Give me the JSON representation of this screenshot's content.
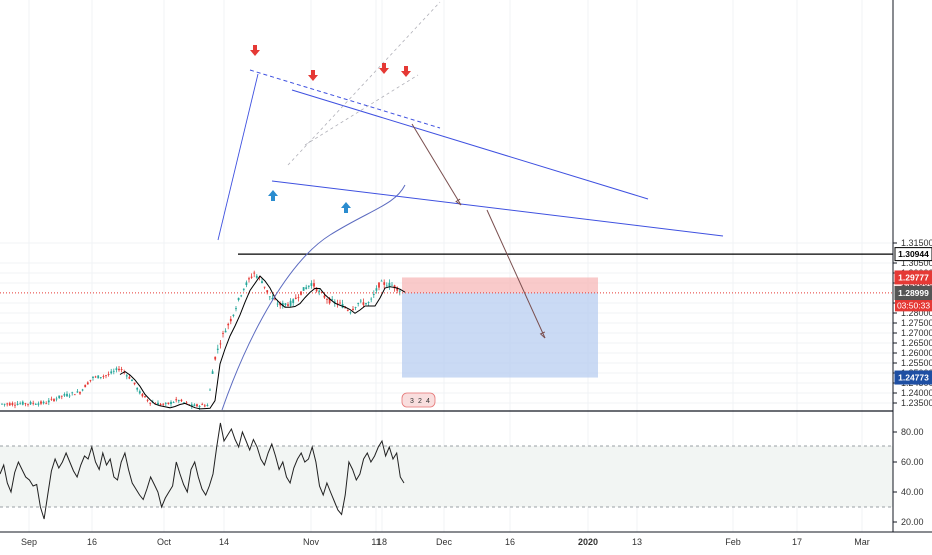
{
  "chart_data": [
    {
      "type": "candlestick",
      "title": "",
      "x_tick_labels": [
        "Sep",
        "16",
        "Oct",
        "14",
        "Nov",
        "11",
        "18",
        "Dec",
        "16",
        "2020",
        "13",
        "Feb",
        "17",
        "Mar"
      ],
      "y_tick_labels": [
        "1.31500",
        "1.30500",
        "1.30000",
        "1.29500",
        "1.28500",
        "1.28000",
        "1.27500",
        "1.27000",
        "1.26500",
        "1.26000",
        "1.25500",
        "1.25000",
        "1.24500",
        "1.24000",
        "1.23500"
      ],
      "ylim": [
        1.2325,
        1.3175
      ],
      "grid": true,
      "price_labels": [
        {
          "value": 1.30944,
          "text": "1.30944",
          "kind": "resistance",
          "color": "#000000"
        },
        {
          "value": 1.29777,
          "text": "1.29777",
          "kind": "take-profit-top",
          "color": "#e53935"
        },
        {
          "value": 1.29007,
          "text": "1.29007",
          "kind": "last-price",
          "color": "#e53935"
        },
        {
          "value": 1.28999,
          "text": "1.28999",
          "kind": "bid",
          "color": "#555555"
        },
        {
          "value": 1.24773,
          "text": "1.24773",
          "kind": "target",
          "color": "#1e4fa3"
        }
      ],
      "countdown": "03:50:33",
      "markers": {
        "down_arrows": 4,
        "up_arrows": 2,
        "down_arrow_color": "#e53935",
        "up_arrow_color": "#2a8ccf"
      },
      "event_badge": [
        "3",
        "2",
        "4"
      ],
      "colors": {
        "up": "#26a69a",
        "down": "#e53935",
        "ma_short": "#000000",
        "ma_long": "#5c6bc0",
        "trendline": "#3f51e0",
        "stop_zone": "#f7b3b3",
        "target_zone": "#b8cdf0"
      }
    },
    {
      "type": "line",
      "title": "",
      "y_tick_labels": [
        "80.00",
        "60.00",
        "40.00",
        "20.00"
      ],
      "ylim": [
        15,
        90
      ],
      "series": [
        {
          "values": [
            52,
            58,
            46,
            40,
            53,
            60,
            55,
            50,
            48,
            44,
            45,
            30,
            22,
            38,
            54,
            62,
            56,
            60,
            66,
            60,
            54,
            50,
            58,
            64,
            62,
            70,
            60,
            55,
            66,
            58,
            62,
            50,
            48,
            60,
            66,
            55,
            46,
            42,
            38,
            35,
            42,
            50,
            45,
            40,
            30,
            36,
            40,
            44,
            60,
            52,
            45,
            40,
            55,
            60,
            50,
            42,
            38,
            44,
            52,
            70,
            86,
            74,
            78,
            82,
            75,
            70,
            80,
            74,
            68,
            75,
            70,
            62,
            58,
            66,
            72,
            64,
            55,
            60,
            50,
            46,
            56,
            62,
            66,
            60,
            62,
            70,
            60,
            44,
            38,
            46,
            40,
            34,
            28,
            25,
            38,
            60,
            55,
            48,
            52,
            62,
            66,
            60,
            64,
            70,
            74,
            64,
            70,
            62,
            66,
            50,
            46
          ],
          "color": "#222222"
        }
      ]
    }
  ]
}
